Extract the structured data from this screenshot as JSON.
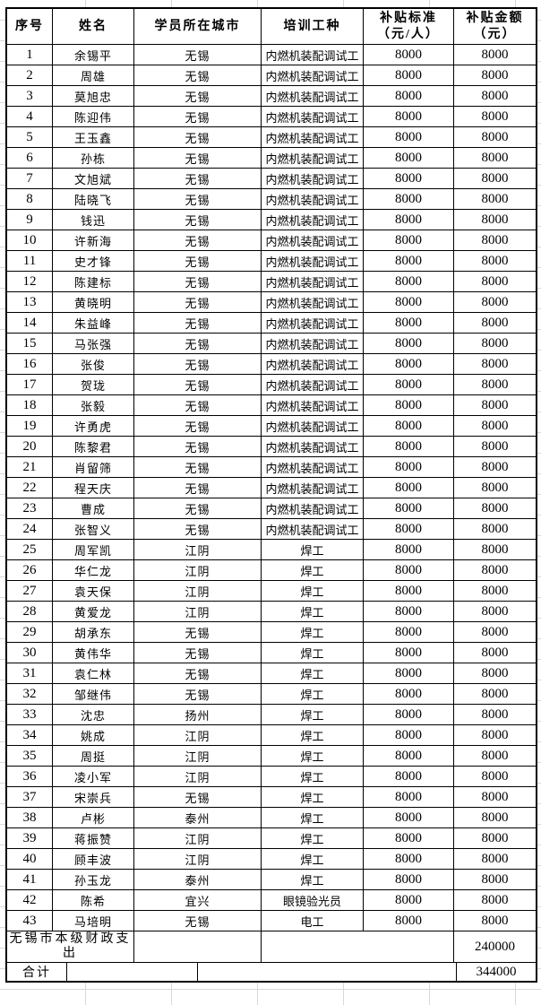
{
  "table": {
    "columns": [
      {
        "label": "序号"
      },
      {
        "label": "姓名"
      },
      {
        "label": "学员所在城市"
      },
      {
        "label": "培训工种"
      },
      {
        "label": "补贴标准",
        "label2": "（元/人）"
      },
      {
        "label": "补贴金额",
        "label2": "（元）"
      }
    ],
    "rows": [
      {
        "no": "1",
        "name": "余锡平",
        "city": "无锡",
        "trade": "内燃机装配调试工",
        "standard": "8000",
        "amount": "8000"
      },
      {
        "no": "2",
        "name": "周雄",
        "city": "无锡",
        "trade": "内燃机装配调试工",
        "standard": "8000",
        "amount": "8000"
      },
      {
        "no": "3",
        "name": "莫旭忠",
        "city": "无锡",
        "trade": "内燃机装配调试工",
        "standard": "8000",
        "amount": "8000"
      },
      {
        "no": "4",
        "name": "陈迎伟",
        "city": "无锡",
        "trade": "内燃机装配调试工",
        "standard": "8000",
        "amount": "8000"
      },
      {
        "no": "5",
        "name": "王玉鑫",
        "city": "无锡",
        "trade": "内燃机装配调试工",
        "standard": "8000",
        "amount": "8000"
      },
      {
        "no": "6",
        "name": "孙栋",
        "city": "无锡",
        "trade": "内燃机装配调试工",
        "standard": "8000",
        "amount": "8000"
      },
      {
        "no": "7",
        "name": "文旭斌",
        "city": "无锡",
        "trade": "内燃机装配调试工",
        "standard": "8000",
        "amount": "8000"
      },
      {
        "no": "8",
        "name": "陆晓飞",
        "city": "无锡",
        "trade": "内燃机装配调试工",
        "standard": "8000",
        "amount": "8000"
      },
      {
        "no": "9",
        "name": "钱迅",
        "city": "无锡",
        "trade": "内燃机装配调试工",
        "standard": "8000",
        "amount": "8000"
      },
      {
        "no": "10",
        "name": "许新海",
        "city": "无锡",
        "trade": "内燃机装配调试工",
        "standard": "8000",
        "amount": "8000"
      },
      {
        "no": "11",
        "name": "史才锋",
        "city": "无锡",
        "trade": "内燃机装配调试工",
        "standard": "8000",
        "amount": "8000"
      },
      {
        "no": "12",
        "name": "陈建标",
        "city": "无锡",
        "trade": "内燃机装配调试工",
        "standard": "8000",
        "amount": "8000"
      },
      {
        "no": "13",
        "name": "黄晓明",
        "city": "无锡",
        "trade": "内燃机装配调试工",
        "standard": "8000",
        "amount": "8000"
      },
      {
        "no": "14",
        "name": "朱益峰",
        "city": "无锡",
        "trade": "内燃机装配调试工",
        "standard": "8000",
        "amount": "8000"
      },
      {
        "no": "15",
        "name": "马张强",
        "city": "无锡",
        "trade": "内燃机装配调试工",
        "standard": "8000",
        "amount": "8000"
      },
      {
        "no": "16",
        "name": "张俊",
        "city": "无锡",
        "trade": "内燃机装配调试工",
        "standard": "8000",
        "amount": "8000"
      },
      {
        "no": "17",
        "name": "贺珑",
        "city": "无锡",
        "trade": "内燃机装配调试工",
        "standard": "8000",
        "amount": "8000"
      },
      {
        "no": "18",
        "name": "张毅",
        "city": "无锡",
        "trade": "内燃机装配调试工",
        "standard": "8000",
        "amount": "8000"
      },
      {
        "no": "19",
        "name": "许勇虎",
        "city": "无锡",
        "trade": "内燃机装配调试工",
        "standard": "8000",
        "amount": "8000"
      },
      {
        "no": "20",
        "name": "陈黎君",
        "city": "无锡",
        "trade": "内燃机装配调试工",
        "standard": "8000",
        "amount": "8000"
      },
      {
        "no": "21",
        "name": "肖留筛",
        "city": "无锡",
        "trade": "内燃机装配调试工",
        "standard": "8000",
        "amount": "8000"
      },
      {
        "no": "22",
        "name": "程天庆",
        "city": "无锡",
        "trade": "内燃机装配调试工",
        "standard": "8000",
        "amount": "8000"
      },
      {
        "no": "23",
        "name": "曹成",
        "city": "无锡",
        "trade": "内燃机装配调试工",
        "standard": "8000",
        "amount": "8000"
      },
      {
        "no": "24",
        "name": "张智义",
        "city": "无锡",
        "trade": "内燃机装配调试工",
        "standard": "8000",
        "amount": "8000"
      },
      {
        "no": "25",
        "name": "周军凯",
        "city": "江阴",
        "trade": "焊工",
        "standard": "8000",
        "amount": "8000"
      },
      {
        "no": "26",
        "name": "华仁龙",
        "city": "江阴",
        "trade": "焊工",
        "standard": "8000",
        "amount": "8000"
      },
      {
        "no": "27",
        "name": "袁天保",
        "city": "江阴",
        "trade": "焊工",
        "standard": "8000",
        "amount": "8000"
      },
      {
        "no": "28",
        "name": "黄爱龙",
        "city": "江阴",
        "trade": "焊工",
        "standard": "8000",
        "amount": "8000"
      },
      {
        "no": "29",
        "name": "胡承东",
        "city": "无锡",
        "trade": "焊工",
        "standard": "8000",
        "amount": "8000"
      },
      {
        "no": "30",
        "name": "黄伟华",
        "city": "无锡",
        "trade": "焊工",
        "standard": "8000",
        "amount": "8000"
      },
      {
        "no": "31",
        "name": "袁仁林",
        "city": "无锡",
        "trade": "焊工",
        "standard": "8000",
        "amount": "8000"
      },
      {
        "no": "32",
        "name": "邹继伟",
        "city": "无锡",
        "trade": "焊工",
        "standard": "8000",
        "amount": "8000"
      },
      {
        "no": "33",
        "name": "沈忠",
        "city": "扬州",
        "trade": "焊工",
        "standard": "8000",
        "amount": "8000"
      },
      {
        "no": "34",
        "name": "姚成",
        "city": "江阴",
        "trade": "焊工",
        "standard": "8000",
        "amount": "8000"
      },
      {
        "no": "35",
        "name": "周挺",
        "city": "江阴",
        "trade": "焊工",
        "standard": "8000",
        "amount": "8000"
      },
      {
        "no": "36",
        "name": "凌小军",
        "city": "江阴",
        "trade": "焊工",
        "standard": "8000",
        "amount": "8000"
      },
      {
        "no": "37",
        "name": "宋崇兵",
        "city": "无锡",
        "trade": "焊工",
        "standard": "8000",
        "amount": "8000"
      },
      {
        "no": "38",
        "name": "卢彬",
        "city": "泰州",
        "trade": "焊工",
        "standard": "8000",
        "amount": "8000"
      },
      {
        "no": "39",
        "name": "蒋振赞",
        "city": "江阴",
        "trade": "焊工",
        "standard": "8000",
        "amount": "8000"
      },
      {
        "no": "40",
        "name": "顾丰波",
        "city": "江阴",
        "trade": "焊工",
        "standard": "8000",
        "amount": "8000"
      },
      {
        "no": "41",
        "name": "孙玉龙",
        "city": "泰州",
        "trade": "焊工",
        "standard": "8000",
        "amount": "8000"
      },
      {
        "no": "42",
        "name": "陈希",
        "city": "宜兴",
        "trade": "眼镜验光员",
        "standard": "8000",
        "amount": "8000"
      },
      {
        "no": "43",
        "name": "马培明",
        "city": "无锡",
        "trade": "电工",
        "standard": "8000",
        "amount": "8000"
      }
    ],
    "footer": {
      "expenditure_label": "无锡市本级财政支出",
      "expenditure_amount": "240000",
      "total_label": "合计",
      "total_amount": "344000"
    }
  }
}
